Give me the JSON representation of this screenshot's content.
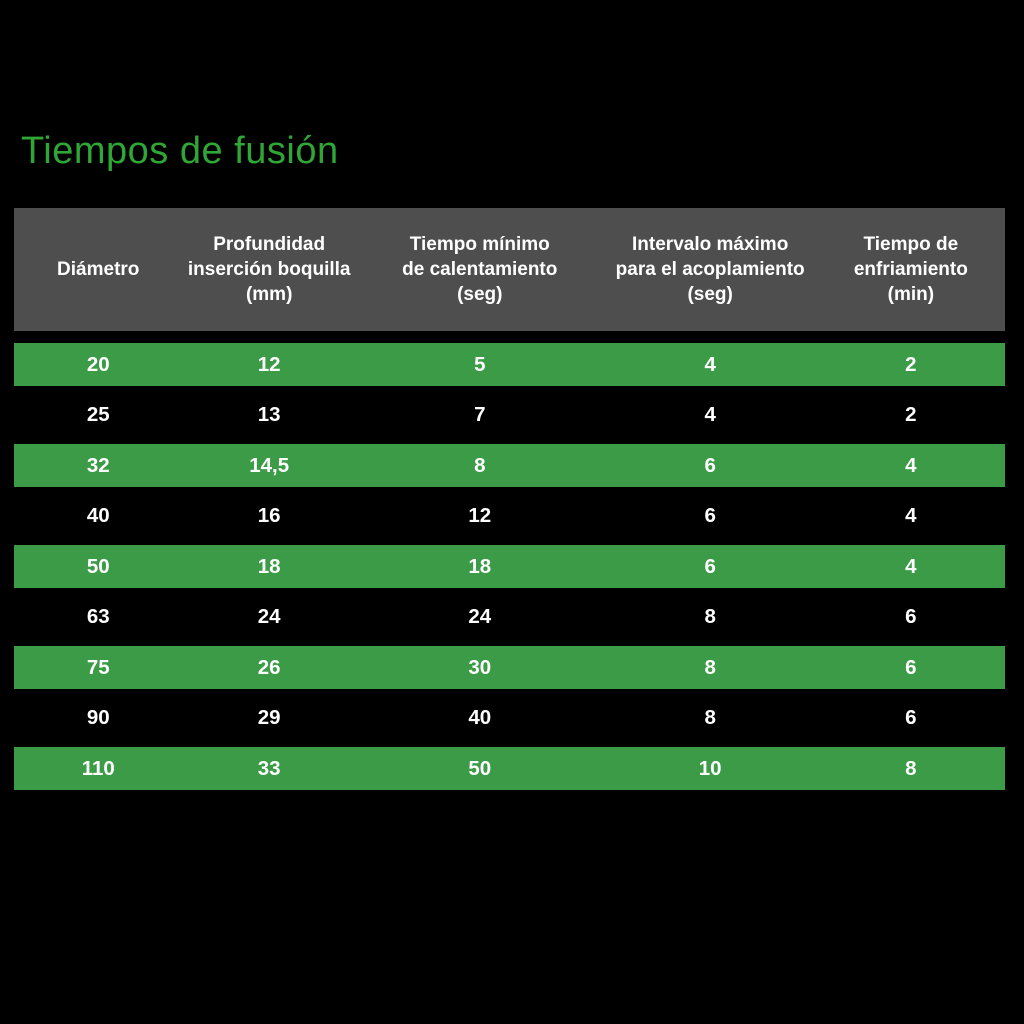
{
  "page": {
    "title": "Tiempos de fusión"
  },
  "colors": {
    "background": "#000000",
    "title_green": "#2fa636",
    "row_green": "#3b9b47",
    "header_gray": "#4e4e4e",
    "text": "#ffffff"
  },
  "table": {
    "headers": [
      "Diámetro",
      "Profundidad\ninserción boquilla\n(mm)",
      "Tiempo mínimo\nde calentamiento\n(seg)",
      "Intervalo máximo\npara el acoplamiento\n(seg)",
      "Tiempo de\nenfriamiento\n(min)"
    ]
  },
  "chart_data": {
    "type": "table",
    "title": "Tiempos de fusión",
    "columns": [
      "Diámetro",
      "Profundidad inserción boquilla (mm)",
      "Tiempo mínimo de calentamiento (seg)",
      "Intervalo máximo para el acoplamiento (seg)",
      "Tiempo de enfriamiento (min)"
    ],
    "rows": [
      [
        "20",
        "12",
        "5",
        "4",
        "2"
      ],
      [
        "25",
        "13",
        "7",
        "4",
        "2"
      ],
      [
        "32",
        "14,5",
        "8",
        "6",
        "4"
      ],
      [
        "40",
        "16",
        "12",
        "6",
        "4"
      ],
      [
        "50",
        "18",
        "18",
        "6",
        "4"
      ],
      [
        "63",
        "24",
        "24",
        "8",
        "6"
      ],
      [
        "75",
        "26",
        "30",
        "8",
        "6"
      ],
      [
        "90",
        "29",
        "40",
        "8",
        "6"
      ],
      [
        "110",
        "33",
        "50",
        "10",
        "8"
      ]
    ],
    "layout": {
      "striping": "alternating rows highlighted green starting with the first data row; non-highlighted rows are black on black background",
      "header_background": "dark gray",
      "page_background": "black",
      "grid": "off",
      "text_alignment": "centered"
    }
  }
}
